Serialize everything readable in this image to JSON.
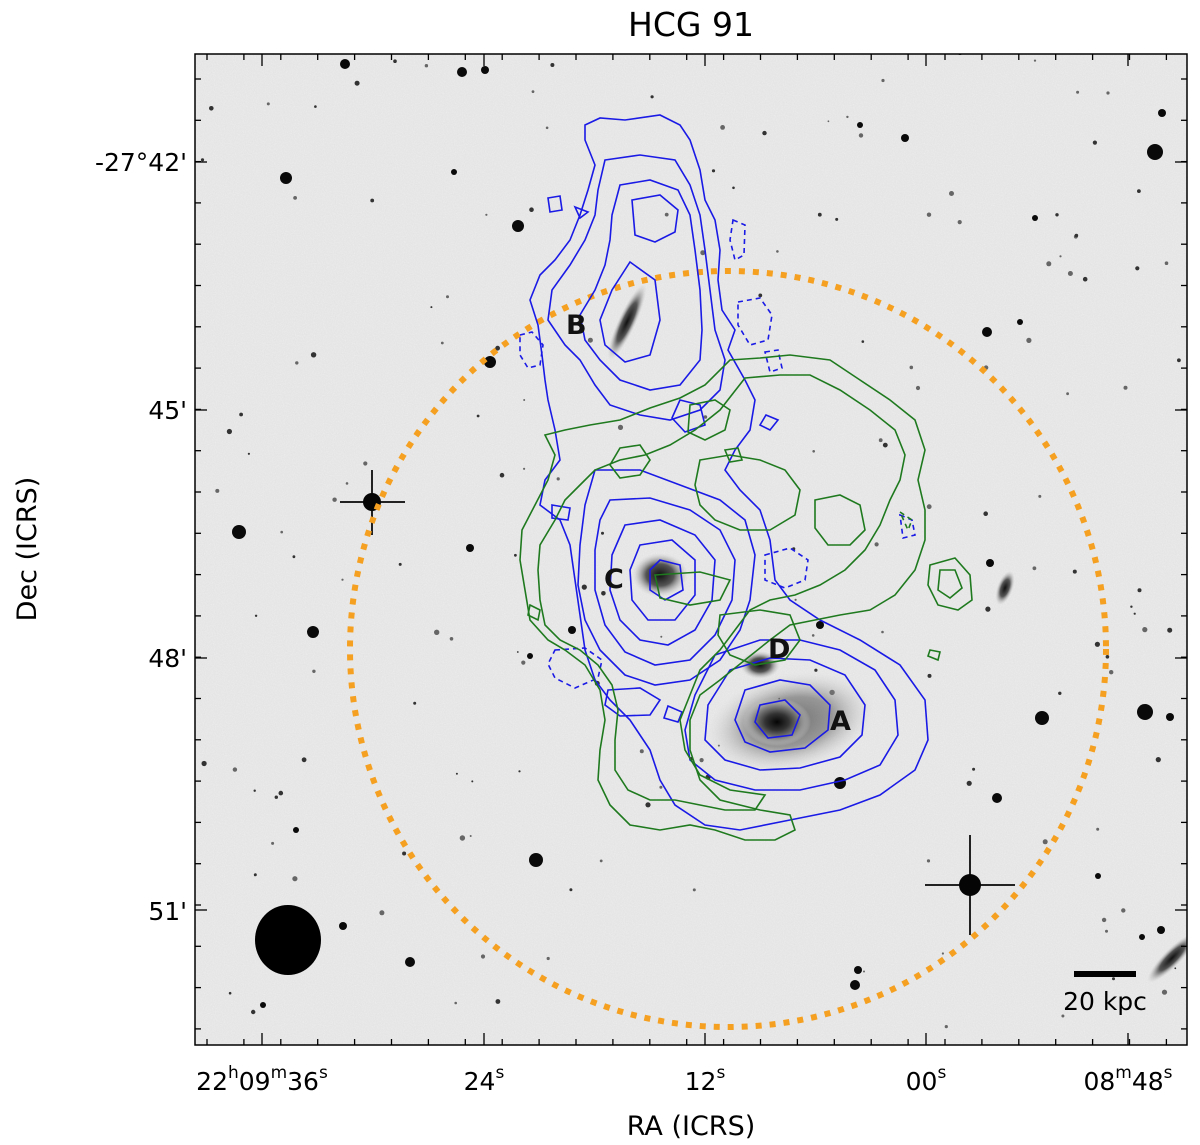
{
  "title": "HCG 91",
  "axes": {
    "xlabel": "RA (ICRS)",
    "ylabel": "Dec (ICRS)",
    "x_ticks": [
      {
        "h": "22",
        "m": "09",
        "s": "36"
      },
      {
        "s": "24"
      },
      {
        "s": "12"
      },
      {
        "s": "00"
      },
      {
        "m": "08",
        "s": "48"
      }
    ],
    "y_ticks": [
      "-27°42'",
      "45'",
      "48'",
      "51'"
    ]
  },
  "galaxy_labels": [
    "A",
    "B",
    "C",
    "D"
  ],
  "scale_bar": {
    "label": "20 kpc"
  },
  "colors": {
    "contour_primary": "#1a1ae6",
    "contour_secondary": "#1f7a1f",
    "search_circle": "#f5a020",
    "background_sky": "#e4e4e4",
    "beam": "#000000"
  }
}
